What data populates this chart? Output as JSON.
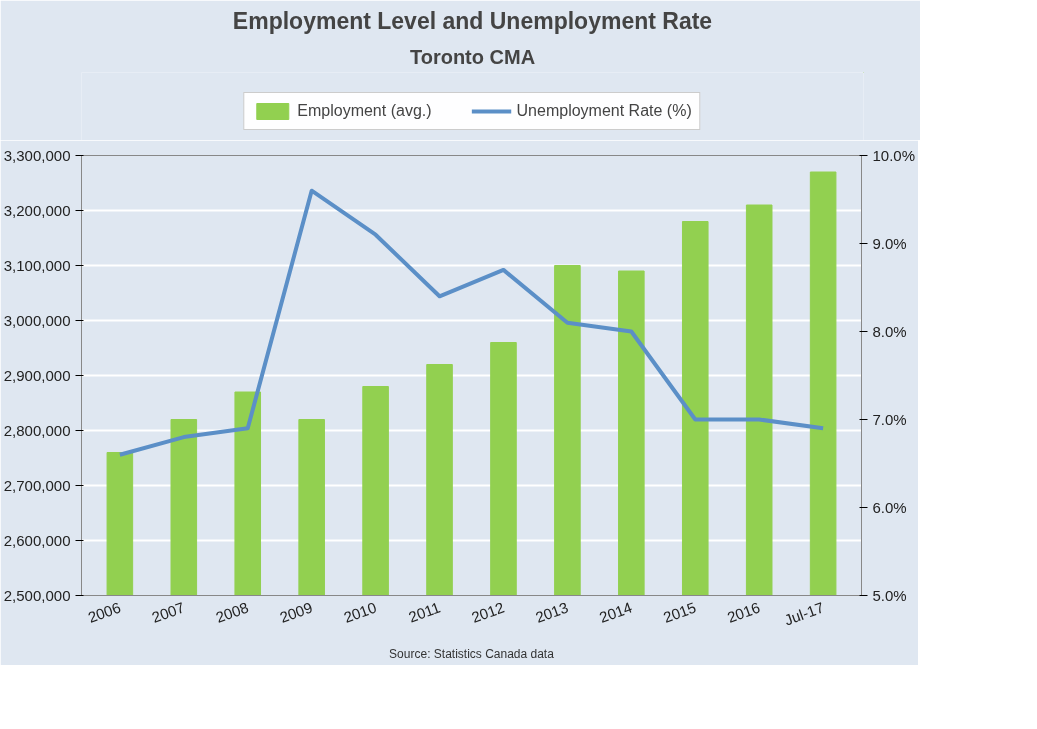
{
  "chart_data": {
    "type": "bar",
    "title": "Employment Level and Unemployment Rate",
    "subtitle": "Toronto CMA",
    "categories": [
      "2006",
      "2007",
      "2008",
      "2009",
      "2010",
      "2011",
      "2012",
      "2013",
      "2014",
      "2015",
      "2016",
      "Jul-17"
    ],
    "series": [
      {
        "name": "Employment (avg.)",
        "color": "#92d050",
        "values": [
          2760000,
          2820000,
          2870000,
          2820000,
          2880000,
          2920000,
          2960000,
          3100000,
          3090000,
          3180000,
          3210000,
          3270000
        ]
      },
      {
        "name": "Unemployment Rate (%)",
        "type": "line",
        "axis": "y2",
        "color": "#5b8fc7",
        "values": [
          6.6,
          6.8,
          6.9,
          9.6,
          9.1,
          8.4,
          8.7,
          8.1,
          8.0,
          7.0,
          7.0,
          6.9
        ]
      }
    ],
    "ylim": [
      2500000,
      3300000
    ],
    "yticks": [
      {
        "value": 2500000,
        "label": "2,500,000"
      },
      {
        "value": 2600000,
        "label": "2,600,000"
      },
      {
        "value": 2700000,
        "label": "2,700,000"
      },
      {
        "value": 2800000,
        "label": "2,800,000"
      },
      {
        "value": 2900000,
        "label": "2,900,000"
      },
      {
        "value": 3000000,
        "label": "3,000,000"
      },
      {
        "value": 3100000,
        "label": "3,100,000"
      },
      {
        "value": 3200000,
        "label": "3,200,000"
      },
      {
        "value": 3300000,
        "label": "3,300,000"
      }
    ],
    "y2lim": [
      5,
      10
    ],
    "y2ticks": [
      {
        "value": 5,
        "label": "5.0%"
      },
      {
        "value": 6,
        "label": "6.0%"
      },
      {
        "value": 7,
        "label": "7.0%"
      },
      {
        "value": 8,
        "label": "8.0%"
      },
      {
        "value": 9,
        "label": "9.0%"
      },
      {
        "value": 10,
        "label": "10.0%"
      }
    ],
    "grid": "y",
    "legend": "top",
    "marker": "none",
    "line_style": "solid",
    "annotations": [
      "Source: Statistics Canada data"
    ]
  }
}
